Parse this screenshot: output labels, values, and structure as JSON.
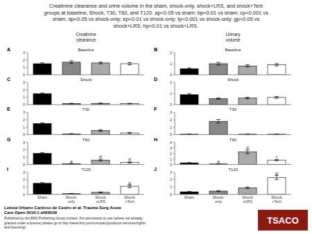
{
  "title": "Creatinine clearance and urine volume in the sham, shock-only, shock+LRS, and shock+Terli\ngroups at baseline, Shock, T30, T60, and T120. ap<0.05 vs sham; bp<0.01 vs sham; cp<0.001 vs\nsham; dp<0.05 vs shock-only; ep<0.01 vs shock-only; fp<0.001 vs shock-only; gp<0.05 vs\nshock+LRS; hp<0.01 vs shock+LRS.",
  "column_titles": [
    "Creatinine\nclearance",
    "Urinary\nvolume"
  ],
  "footer": "Leticia Urbano Cardoso de Castro et al. Trauma Surg Acute\nCare Open 2016;1:e000039",
  "publisher": "Published by the BMJ Publishing Group Limited. For permission to use (where not already\ngranted under a licence) please go to http://www.bmj.com/company/products-services/rights-\nand-licensing/",
  "logo": {
    "text": "TSACO",
    "color": "#8B1A10"
  },
  "chart_data": [
    {
      "type": "bar",
      "panel_label": "A",
      "title": "Baseline",
      "categories": [
        "Sham",
        "Shock-\nonly",
        "Shock\n+LRS",
        "Shock\n+Terli"
      ],
      "values": [
        1.5,
        1.7,
        1.6,
        1.5
      ],
      "errors": [
        0.12,
        0.18,
        0.12,
        0.15
      ],
      "colors": [
        "#000000",
        "#888888",
        "#aaaaaa",
        "#ffffff"
      ],
      "annotations": [
        null,
        null,
        null,
        null
      ],
      "ylim": [
        0,
        3
      ],
      "yticks": [
        0,
        1,
        2,
        3
      ],
      "grid": false,
      "tick_labels": "y"
    },
    {
      "type": "bar",
      "panel_label": "B",
      "title": "Baseline",
      "categories": [
        "Sham",
        "Shock-\nonly",
        "Shock\n+LRS",
        "Shock\n+Terli"
      ],
      "values": [
        0.55,
        1.0,
        0.8,
        0.9
      ],
      "errors": [
        0.07,
        0.12,
        0.1,
        0.1
      ],
      "colors": [
        "#000000",
        "#888888",
        "#aaaaaa",
        "#ffffff"
      ],
      "annotations": [
        null,
        null,
        null,
        null
      ],
      "ylim": [
        0,
        2
      ],
      "yticks": [
        0,
        1,
        2
      ],
      "grid": false,
      "tick_labels": "y"
    },
    {
      "type": "bar",
      "panel_label": "C",
      "title": "Shock",
      "categories": [
        "Sham",
        "Shock-\nonly",
        "Shock\n+LRS",
        "Shock\n+Terli"
      ],
      "values": [
        1.5,
        0.15,
        0.18,
        0.15
      ],
      "errors": [
        0.1,
        0.04,
        0.05,
        0.04
      ],
      "colors": [
        "#000000",
        "#888888",
        "#aaaaaa",
        "#ffffff"
      ],
      "annotations": [
        null,
        null,
        null,
        null
      ],
      "ylim": [
        0,
        3
      ],
      "yticks": [
        0,
        1,
        2,
        3
      ],
      "grid": false,
      "tick_labels": "y"
    },
    {
      "type": "bar",
      "panel_label": "D",
      "title": "Shock",
      "categories": [
        "Sham",
        "Shock-\nonly",
        "Shock\n+LRS",
        "Shock\n+Terli"
      ],
      "values": [
        0.9,
        0.55,
        0.6,
        0.65
      ],
      "errors": [
        0.1,
        0.06,
        0.07,
        0.08
      ],
      "colors": [
        "#000000",
        "#888888",
        "#aaaaaa",
        "#ffffff"
      ],
      "annotations": [
        null,
        null,
        null,
        null
      ],
      "ylim": [
        0,
        2
      ],
      "yticks": [
        0,
        1,
        2
      ],
      "grid": false,
      "tick_labels": "y"
    },
    {
      "type": "bar",
      "panel_label": "E",
      "title": "T30",
      "categories": [
        "Sham",
        "Shock-\nonly",
        "Shock\n+LRS",
        "Shock\n+Terli"
      ],
      "values": [
        1.5,
        0.1,
        0.55,
        0.22
      ],
      "errors": [
        0.1,
        0.03,
        0.12,
        0.07
      ],
      "colors": [
        "#000000",
        "#888888",
        "#aaaaaa",
        "#ffffff"
      ],
      "annotations": [
        null,
        null,
        null,
        null
      ],
      "ylim": [
        0,
        3
      ],
      "yticks": [
        0,
        1,
        2,
        3
      ],
      "grid": false,
      "tick_labels": "y"
    },
    {
      "type": "bar",
      "panel_label": "F",
      "title": "T30",
      "categories": [
        "Sham",
        "Shock-\nonly",
        "Shock\n+LRS",
        "Shock\n+Terli"
      ],
      "values": [
        0.05,
        1.8,
        0.05,
        0.05
      ],
      "errors": [
        0.01,
        0.25,
        0.01,
        0.01
      ],
      "colors": [
        "#000000",
        "#888888",
        "#aaaaaa",
        "#ffffff"
      ],
      "annotations": [
        null,
        null,
        null,
        null
      ],
      "ylim": [
        0,
        3
      ],
      "yticks": [
        0,
        1,
        2,
        3
      ],
      "grid": false,
      "tick_labels": "y"
    },
    {
      "type": "bar",
      "panel_label": "G",
      "title": "T60",
      "categories": [
        "Sham",
        "Shock-\nonly",
        "Shock\n+LRS",
        "Shock\n+Terli"
      ],
      "values": [
        1.5,
        0.1,
        0.6,
        0.28
      ],
      "errors": [
        0.1,
        0.03,
        0.12,
        0.07
      ],
      "colors": [
        "#000000",
        "#888888",
        "#aaaaaa",
        "#ffffff"
      ],
      "annotations": [
        null,
        "a",
        "d",
        "d"
      ],
      "ylim": [
        0,
        3
      ],
      "yticks": [
        0,
        1,
        2,
        3
      ],
      "grid": false,
      "tick_labels": "y"
    },
    {
      "type": "bar",
      "panel_label": "H",
      "title": "T60",
      "categories": [
        "Sham",
        "Shock-\nonly",
        "Shock\n+LRS",
        "Shock\n+Terli"
      ],
      "values": [
        0.3,
        0.1,
        2.3,
        0.8
      ],
      "errors": [
        0.04,
        0.02,
        0.35,
        0.12
      ],
      "colors": [
        "#000000",
        "#888888",
        "#aaaaaa",
        "#ffffff"
      ],
      "annotations": [
        null,
        "a",
        "d",
        "f"
      ],
      "ylim": [
        0,
        4
      ],
      "yticks": [
        0,
        1,
        2,
        3,
        4
      ],
      "grid": false,
      "tick_labels": "y"
    },
    {
      "type": "bar",
      "panel_label": "I",
      "title": "T120",
      "categories": [
        "Sham",
        "Shock-\nonly",
        "Shock\n+LRS",
        "Shock\n+Terli"
      ],
      "values": [
        1.5,
        0.1,
        0.28,
        1.1
      ],
      "errors": [
        0.1,
        0.03,
        0.05,
        0.18
      ],
      "colors": [
        "#000000",
        "#888888",
        "#aaaaaa",
        "#ffffff"
      ],
      "annotations": [
        null,
        null,
        null,
        "g"
      ],
      "ylim": [
        0,
        3
      ],
      "yticks": [
        0,
        1,
        2,
        3
      ],
      "grid": false,
      "tick_labels": true
    },
    {
      "type": "bar",
      "panel_label": "J",
      "title": "T120",
      "categories": [
        "Sham",
        "Shock-\nonly",
        "Shock\n+LRS",
        "Shock\n+Terli"
      ],
      "values": [
        0.35,
        0.45,
        0.9,
        2.3
      ],
      "errors": [
        0.05,
        0.06,
        0.1,
        0.28
      ],
      "colors": [
        "#000000",
        "#888888",
        "#aaaaaa",
        "#ffffff"
      ],
      "annotations": [
        null,
        null,
        null,
        "g"
      ],
      "ylim": [
        0,
        3
      ],
      "yticks": [
        0,
        1,
        2,
        3
      ],
      "grid": false,
      "tick_labels": true
    }
  ]
}
